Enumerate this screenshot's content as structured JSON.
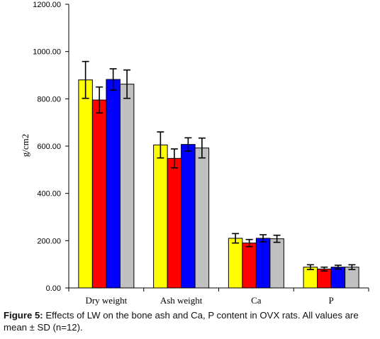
{
  "chart_data": {
    "type": "bar",
    "ylabel": "g/cm2",
    "ylim": [
      0,
      1200
    ],
    "yticks": [
      "0.00",
      "200.00",
      "400.00",
      "600.00",
      "800.00",
      "1000.00",
      "1200.00"
    ],
    "categories": [
      "Dry weight",
      "Ash  weight",
      "Ca",
      "P"
    ],
    "series": [
      {
        "color": "#ffff00",
        "values": [
          880,
          605,
          210,
          88
        ],
        "errors": [
          78,
          55,
          20,
          10
        ]
      },
      {
        "color": "#ff0000",
        "values": [
          795,
          548,
          190,
          80
        ],
        "errors": [
          55,
          40,
          15,
          8
        ]
      },
      {
        "color": "#0000ff",
        "values": [
          882,
          607,
          210,
          88
        ],
        "errors": [
          45,
          28,
          15,
          8
        ]
      },
      {
        "color": "#c0c0c0",
        "values": [
          862,
          592,
          208,
          88
        ],
        "errors": [
          60,
          42,
          15,
          10
        ]
      }
    ],
    "legend": "none",
    "grid": false
  },
  "caption": {
    "label": "Figure 5:",
    "text": " Effects of LW on the bone ash and Ca, P content in OVX rats. All values are mean ± SD (n=12)."
  }
}
